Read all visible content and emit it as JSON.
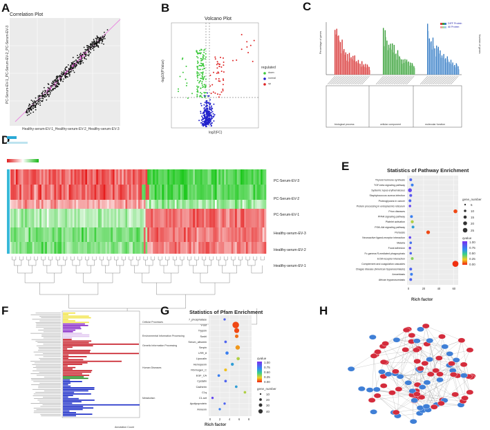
{
  "panels": {
    "a": {
      "letter": "A",
      "title": "Correlation Plot",
      "xlabel": "Healthy-serum-EV-1_Healthy-serum-EV-2_Healthy-serum-EV-3",
      "ylabel": "PC-Serum-EV-1_PC-Serum-EV-2_PC-Serum-EV-3"
    },
    "b": {
      "letter": "B",
      "title": "Volcano Plot",
      "xlabel": "log2(FC)",
      "ylabel": "-log10(P.Value)",
      "legend_title": "regulated",
      "legend": [
        "down",
        "normal",
        "up"
      ]
    },
    "c": {
      "letter": "C",
      "ylabel": "Percentage of genes",
      "y2label": "Number of genes",
      "legend": [
        "DIFF Protein",
        "All Protein"
      ],
      "categories": [
        "biological process",
        "cellular component",
        "molecular function"
      ]
    },
    "d": {
      "letter": "D",
      "rows": [
        "PC-Serum-EV-3",
        "PC-Serum-EV-2",
        "PC-Serum-EV-1",
        "Healthy-serum-EV-3",
        "Healthy-serum-EV-2",
        "Healthy-serum-EV-1"
      ]
    },
    "e": {
      "letter": "E",
      "title": "Statistics of Pathway Enrichment",
      "xlabel": "Rich factor",
      "size_title": "gene_number",
      "size_values": [
        "5",
        "10",
        "15",
        "20",
        "25"
      ],
      "color_title": "qvalue",
      "color_values": [
        "1.00",
        "0.75",
        "0.50",
        "0.25",
        "0.00"
      ]
    },
    "f": {
      "letter": "F",
      "xlabel": "Annotation Count",
      "groups": [
        "Cellular Processes",
        "Environmental Information Processing",
        "Genetic Information Processing",
        "Human Diseases",
        "Metabolism"
      ]
    },
    "g": {
      "letter": "G",
      "title": "Statistics of Pfam Enrichment",
      "xlabel": "Rich factor",
      "color_title": "qvalue",
      "color_values": [
        "1.00",
        "0.75",
        "0.50",
        "0.25",
        "0.00"
      ],
      "size_title": "gene_number",
      "size_values": [
        "10",
        "20",
        "30",
        "40"
      ]
    },
    "h": {
      "letter": "H"
    }
  },
  "chart_data": [
    {
      "type": "scatter",
      "panel": "A",
      "title": "Correlation Plot",
      "xlabel": "Healthy-serum-EV-1_Healthy-serum-EV-2_Healthy-serum-EV-3",
      "ylabel": "PC-Serum-EV-1_PC-Serum-EV-2_PC-Serum-EV-3",
      "note": "points scattered around diagonal reference line y = x",
      "xlim": [
        0,
        1
      ],
      "ylim": [
        0,
        1
      ]
    },
    {
      "type": "scatter",
      "panel": "B",
      "title": "Volcano Plot",
      "xlabel": "log2(FC)",
      "ylabel": "-log10(P.Value)",
      "series": [
        {
          "name": "down",
          "color": "#3cc83c"
        },
        {
          "name": "normal",
          "color": "#2222cc"
        },
        {
          "name": "up",
          "color": "#dd2222"
        }
      ]
    },
    {
      "type": "bar",
      "panel": "E",
      "title": "Statistics of Pathway Enrichment",
      "xlabel": "Rich factor",
      "categories": [
        "Thyroid hormone synthesis",
        "TGF-beta signaling pathway",
        "Systemic lupus erythematosus",
        "Staphylococcus aureus infection",
        "Proteoglycans in cancer",
        "Protein processing in endoplasmic reticulum",
        "Prion diseases",
        "PPAR signaling pathway",
        "Platelet activation",
        "PI3K-Akt signaling pathway",
        "Pertussis",
        "Neuroactive ligand-receptor interaction",
        "Malaria",
        "Focal adhesion",
        "Fc gamma R-mediated phagocytosis",
        "ECM-receptor interaction",
        "Complement and coagulation cascades",
        "Chagas disease (American trypanosomiasis)",
        "Amoebiasis",
        "African trypanosomiasis"
      ],
      "values": [
        3,
        5,
        2,
        3,
        2,
        2,
        62,
        4,
        5,
        6,
        26,
        2,
        3,
        2,
        3,
        5,
        62,
        3,
        4,
        3
      ],
      "gene_number": [
        3,
        3,
        8,
        3,
        3,
        2,
        8,
        3,
        4,
        3,
        7,
        2,
        2,
        2,
        2,
        3,
        26,
        3,
        3,
        3
      ],
      "qvalue": [
        0.8,
        0.7,
        0.9,
        0.85,
        0.8,
        0.9,
        0.05,
        0.7,
        0.3,
        0.6,
        0.05,
        0.9,
        0.75,
        0.9,
        0.8,
        0.35,
        0.02,
        0.8,
        0.7,
        0.8
      ],
      "xlim": [
        0,
        62
      ],
      "xticks": [
        0,
        20,
        40,
        60
      ]
    },
    {
      "type": "bar",
      "panel": "G",
      "title": "Statistics of Pfam Enrichment",
      "xlabel": "Rich factor",
      "categories": [
        "7_phosphatase",
        "V-set",
        "Trypsin",
        "Sushi",
        "Serum_albumin",
        "Serpin",
        "LRR_8",
        "Lipocalin",
        "Hemopexin",
        "Fibrinogen_C",
        "EGF_CA",
        "Cystatin",
        "Cadherin",
        "C1q",
        "C1-set",
        "Apolipoprotein",
        "Annexin"
      ],
      "values": [
        3,
        5.3,
        5.5,
        5.5,
        3.2,
        5.7,
        3.5,
        5.8,
        4.6,
        3.2,
        1.8,
        3.2,
        5.4,
        7.2,
        0.5,
        3,
        2
      ],
      "gene_number": [
        2,
        40,
        20,
        8,
        3,
        15,
        6,
        6,
        5,
        4,
        3,
        3,
        3,
        3,
        2,
        2,
        2
      ],
      "qvalue": [
        0.8,
        0.05,
        0.05,
        0.1,
        0.8,
        0.15,
        0.7,
        0.3,
        0.6,
        0.2,
        0.7,
        0.8,
        0.6,
        0.3,
        0.9,
        0.8,
        0.7
      ],
      "xlim": [
        0,
        8
      ],
      "xticks": [
        0,
        2,
        4,
        6,
        8
      ]
    }
  ]
}
